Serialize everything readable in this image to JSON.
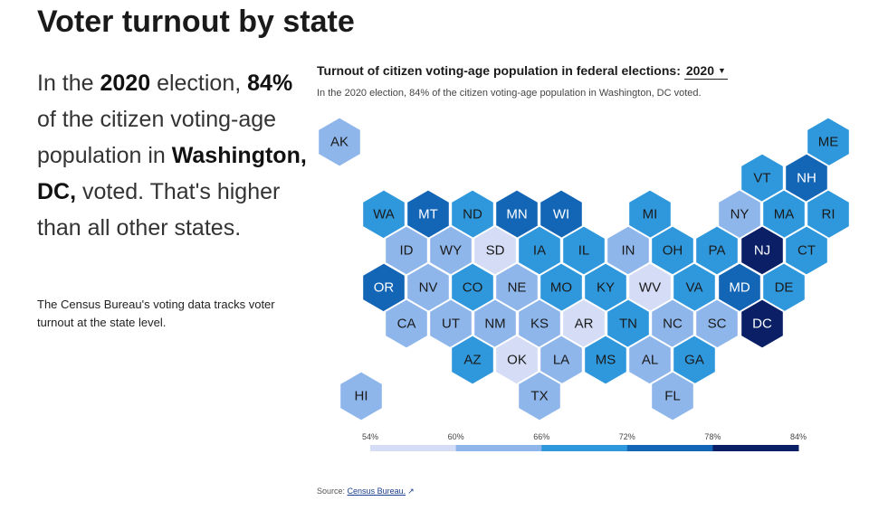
{
  "page": {
    "title": "Voter turnout by state"
  },
  "lead": {
    "p1": "In the ",
    "year": "2020",
    "p2": " election, ",
    "pct": "84%",
    "p3": " of the citizen voting-age population in ",
    "place": "Washington, DC,",
    "p4": " voted. That's higher than all other states."
  },
  "note": "The Census Bureau's voting data tracks voter turnout at the state level.",
  "map": {
    "heading": "Turnout of citizen voting-age population in federal elections:",
    "selected_year": "2020",
    "subtitle": "In the 2020 election, 84% of the citizen voting-age population in Washington, DC voted."
  },
  "legend": {
    "ticks": [
      "54%",
      "60%",
      "66%",
      "72%",
      "78%",
      "84%"
    ],
    "colors": [
      "#d4dcf6",
      "#8fb6eb",
      "#2f98dc",
      "#1365b6",
      "#0a1f66"
    ]
  },
  "states": [
    {
      "abbr": "AK",
      "bin": 1
    },
    {
      "abbr": "ME",
      "bin": 2
    },
    {
      "abbr": "VT",
      "bin": 2
    },
    {
      "abbr": "NH",
      "bin": 3
    },
    {
      "abbr": "WA",
      "bin": 2
    },
    {
      "abbr": "MT",
      "bin": 3
    },
    {
      "abbr": "ND",
      "bin": 2
    },
    {
      "abbr": "MN",
      "bin": 3
    },
    {
      "abbr": "WI",
      "bin": 3
    },
    {
      "abbr": "MI",
      "bin": 2
    },
    {
      "abbr": "NY",
      "bin": 1
    },
    {
      "abbr": "MA",
      "bin": 2
    },
    {
      "abbr": "RI",
      "bin": 2
    },
    {
      "abbr": "ID",
      "bin": 1
    },
    {
      "abbr": "WY",
      "bin": 1
    },
    {
      "abbr": "SD",
      "bin": 0
    },
    {
      "abbr": "IA",
      "bin": 2
    },
    {
      "abbr": "IL",
      "bin": 2
    },
    {
      "abbr": "IN",
      "bin": 1
    },
    {
      "abbr": "OH",
      "bin": 2
    },
    {
      "abbr": "PA",
      "bin": 2
    },
    {
      "abbr": "NJ",
      "bin": 4
    },
    {
      "abbr": "CT",
      "bin": 2
    },
    {
      "abbr": "OR",
      "bin": 3
    },
    {
      "abbr": "NV",
      "bin": 1
    },
    {
      "abbr": "CO",
      "bin": 2
    },
    {
      "abbr": "NE",
      "bin": 1
    },
    {
      "abbr": "MO",
      "bin": 2
    },
    {
      "abbr": "KY",
      "bin": 2
    },
    {
      "abbr": "WV",
      "bin": 0
    },
    {
      "abbr": "VA",
      "bin": 2
    },
    {
      "abbr": "MD",
      "bin": 3
    },
    {
      "abbr": "DE",
      "bin": 2
    },
    {
      "abbr": "CA",
      "bin": 1
    },
    {
      "abbr": "UT",
      "bin": 1
    },
    {
      "abbr": "NM",
      "bin": 1
    },
    {
      "abbr": "KS",
      "bin": 1
    },
    {
      "abbr": "AR",
      "bin": 0
    },
    {
      "abbr": "TN",
      "bin": 2
    },
    {
      "abbr": "NC",
      "bin": 1
    },
    {
      "abbr": "SC",
      "bin": 1
    },
    {
      "abbr": "DC",
      "bin": 4
    },
    {
      "abbr": "AZ",
      "bin": 2
    },
    {
      "abbr": "OK",
      "bin": 0
    },
    {
      "abbr": "LA",
      "bin": 1
    },
    {
      "abbr": "MS",
      "bin": 2
    },
    {
      "abbr": "AL",
      "bin": 1
    },
    {
      "abbr": "GA",
      "bin": 2
    },
    {
      "abbr": "HI",
      "bin": 1
    },
    {
      "abbr": "TX",
      "bin": 1
    },
    {
      "abbr": "FL",
      "bin": 1
    }
  ],
  "source": {
    "label": "Source:",
    "link_text": "Census Bureau."
  }
}
